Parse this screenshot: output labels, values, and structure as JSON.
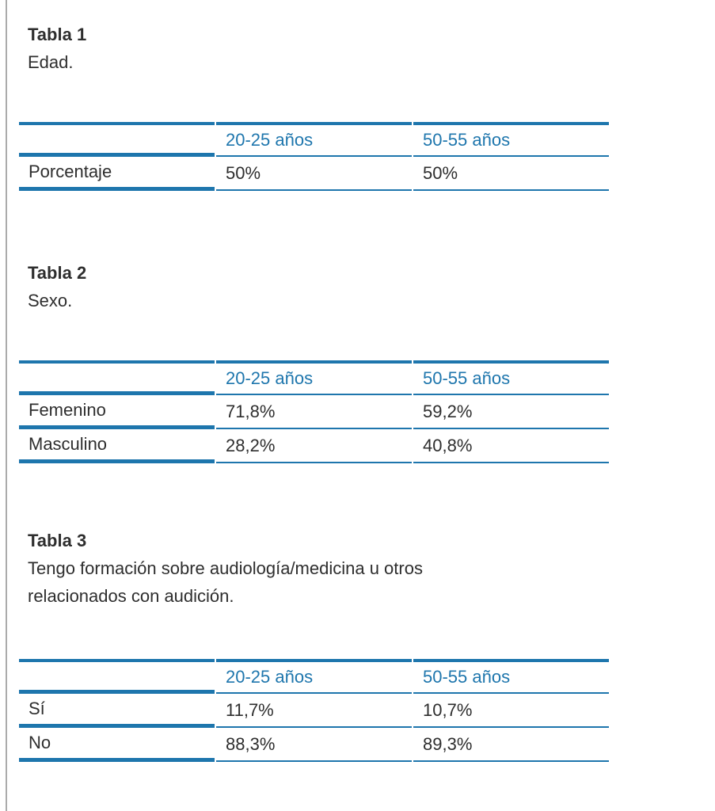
{
  "theme": {
    "accent": "#1e76ad",
    "text": "#2e2e2e",
    "edge": "#ababab",
    "bg": "#ffffff"
  },
  "sections": [
    {
      "title": "Tabla 1",
      "caption": "Edad.",
      "table": {
        "columns": [
          "",
          "20-25 años",
          "50-55 años"
        ],
        "rows": [
          {
            "label": "Porcentaje",
            "values": [
              "50%",
              "50%"
            ]
          }
        ]
      }
    },
    {
      "title": "Tabla 2",
      "caption": "Sexo.",
      "table": {
        "columns": [
          "",
          "20-25 años",
          "50-55 años"
        ],
        "rows": [
          {
            "label": "Femenino",
            "values": [
              "71,8%",
              "59,2%"
            ]
          },
          {
            "label": "Masculino",
            "values": [
              "28,2%",
              "40,8%"
            ]
          }
        ]
      }
    },
    {
      "title": "Tabla 3",
      "caption": "Tengo formación sobre audiología/medicina u otros relacionados con audición.",
      "table": {
        "columns": [
          "",
          "20-25 años",
          "50-55 años"
        ],
        "rows": [
          {
            "label": "Sí",
            "values": [
              "11,7%",
              "10,7%"
            ]
          },
          {
            "label": "No",
            "values": [
              "88,3%",
              "89,3%"
            ]
          }
        ]
      }
    }
  ]
}
